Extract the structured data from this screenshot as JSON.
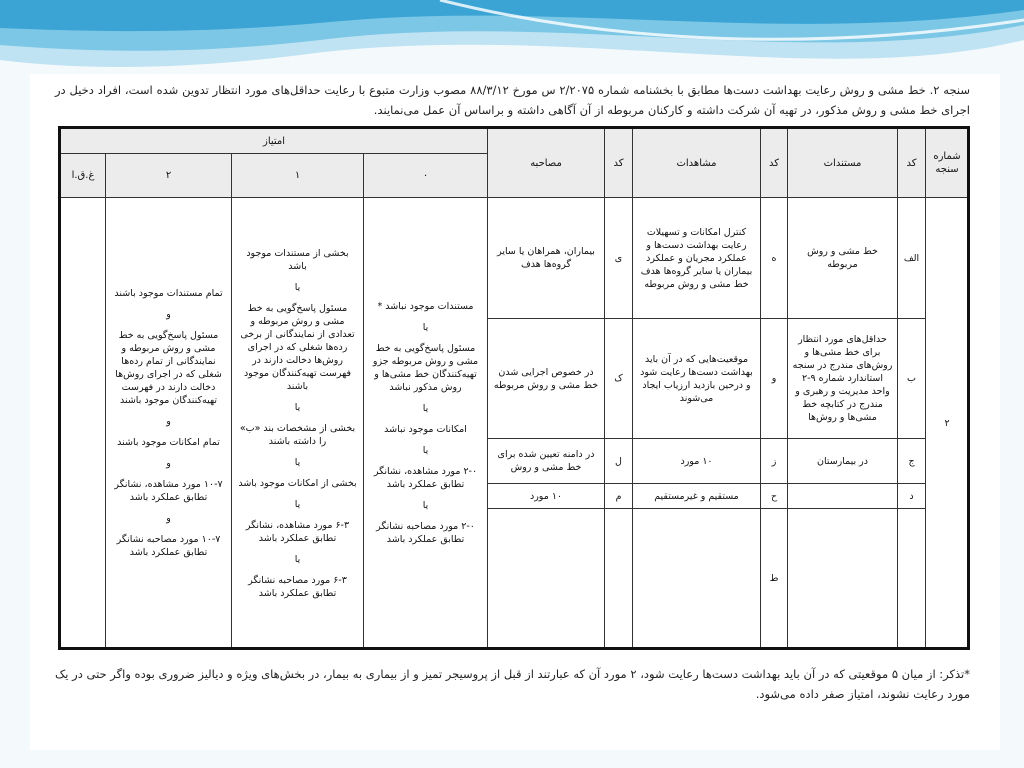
{
  "intro": "سنجه ۲. خط مشی و روش رعایت بهداشت دست‌ها مطابق با بخشنامه شماره ۲/۲۰۷۵ س مورخ ۸۸/۳/۱۲ مصوب وزارت متبوع با رعایت حداقل‌های مورد انتظار تدوین شده است، افراد دخیل در اجرای خط مشی و روش مذکور، در تهیه آن شرکت داشته و کارکنان مربوطه از آن آگاهی داشته و براساس آن عمل می‌نمایند.",
  "table": {
    "headers": {
      "measure_number": "شماره سنجه",
      "code": "کد",
      "documents": "مستندات",
      "observations": "مشاهدات",
      "interviews": "مصاحبه",
      "score": "امتیاز"
    },
    "measure_number": "۲",
    "rows": [
      {
        "code": "الف",
        "documents": "خط مشی و روش مربوطه",
        "observation_code": "ه",
        "observations": "کنترل امکانات و تسهیلات رعایت بهداشت دست‌ها و عملکرد مجریان و عملکرد بیماران یا سایر گروه‌ها هدف خط مشی و روش مربوطه",
        "interview_code": "ی",
        "interviews": "بیماران، همراهان یا سایر گروه‌ها هدف"
      },
      {
        "code": "ب",
        "documents": "حداقل‌های مورد انتظار برای خط مشی‌ها و روش‌های مندرج در سنجه استاندارد شماره ۹-۲ واحد مدیریت و رهبری و مندرج در کتابچه خط مشی‌ها و روش‌ها",
        "observation_code": "و",
        "observations": "موقعیت‌هایی که در آن باید بهداشت دست‌ها رعایت شود و درحین بازدید ارزیاب ایجاد می‌شوند",
        "interview_code": "ک",
        "interviews": "در خصوص اجرایی شدن خط مشی و روش مربوطه"
      },
      {
        "code": "ج",
        "documents": "در بیمارستان",
        "observation_code": "ز",
        "observations": "۱۰ مورد",
        "interview_code": "ل",
        "interviews": "در دامنه تعیین شده برای خط مشی و روش"
      },
      {
        "code": "د",
        "observation_code": "ح",
        "observations": "مستقیم و غیرمستقیم",
        "interview_code": "م",
        "interviews": "۱۰ مورد"
      },
      {
        "observation_code": "ط"
      }
    ],
    "scores": [
      {
        "label": "۰",
        "lines": [
          "مستندات موجود نباشد *",
          "یا",
          "مسئول پاسخ‌گویی به خط مشی و روش مربوطه جزو تهیه‌کنندگان خط مشی‌ها و روش مذکور نباشد",
          "یا",
          "امکانات موجود نباشد",
          "یا",
          "۲-۰ مورد مشاهده، نشانگر تطابق عملکرد باشد",
          "یا",
          "۲-۰ مورد مصاحبه نشانگر تطابق عملکرد باشد"
        ]
      },
      {
        "label": "۱",
        "lines": [
          "بخشی از مستندات موجود باشد",
          "یا",
          "مسئول پاسخ‌گویی به خط مشی و روش مربوطه و تعدادی از نمایندگانی از برخی رده‌ها شغلی که در اجرای روش‌ها دخالت دارند در فهرست تهیه‌کنندگان موجود باشند",
          "یا",
          "بخشی از مشخصات بند «ب» را داشته باشند",
          "یا",
          "بخشی از امکانات موجود باشد",
          "یا",
          "۶-۳ مورد مشاهده، نشانگر تطابق عملکرد باشد",
          "یا",
          "۶-۳ مورد مصاحبه نشانگر تطابق عملکرد باشد"
        ]
      },
      {
        "label": "۲",
        "lines": [
          "تمام مستندات موجود باشند",
          "و",
          "مسئول پاسخ‌گویی به خط مشی و روش مربوطه و نمایندگانی از تمام رده‌ها شغلی که در اجرای روش‌ها دخالت دارند در فهرست تهیه‌کنندگان موجود باشند",
          "و",
          "تمام امکانات موجود باشند",
          "و",
          "۱۰-۷ مورد مشاهده، نشانگر تطابق عملکرد باشد",
          "و",
          "۱۰-۷ مورد مصاحبه نشانگر تطابق عملکرد باشد"
        ]
      },
      {
        "label": "غ.ق.ا"
      }
    ]
  },
  "note": "*تذکر: از میان ۵ موقعیتی که در آن باید بهداشت دست‌ها رعایت شود، ۲ مورد آن که عبارتند از قبل از پروسیجر تمیز و از بیماری به بیمار، در بخش‌های ویژه و دیالیز ضروری بوده واگر حتی در یک مورد رعایت نشوند، امتیاز صفر داده می‌شود."
}
